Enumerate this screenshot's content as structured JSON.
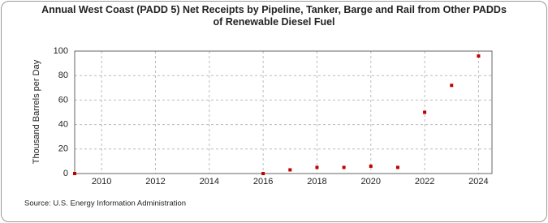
{
  "chart_data": {
    "type": "scatter",
    "title": "Annual West Coast (PADD 5) Net Receipts by Pipeline, Tanker, Barge and Rail from Other PADDs of Renewable Diesel Fuel",
    "y_label": "Thousand Barrels per Day",
    "source": "Source: U.S. Energy Information Administration",
    "series": [
      {
        "name": "Net Receipts",
        "color": "#c00000",
        "x": [
          2009,
          2016,
          2017,
          2018,
          2019,
          2020,
          2021,
          2022,
          2023,
          2024
        ],
        "values": [
          0,
          0,
          3,
          5,
          5,
          6,
          5,
          50,
          72,
          96
        ]
      }
    ],
    "xlim": [
      2009,
      2024.5
    ],
    "xticks": [
      2010,
      2012,
      2014,
      2016,
      2018,
      2020,
      2022,
      2024
    ],
    "ylim": [
      0,
      100
    ],
    "yticks": [
      0,
      20,
      40,
      60,
      80,
      100
    ],
    "grid": true
  }
}
